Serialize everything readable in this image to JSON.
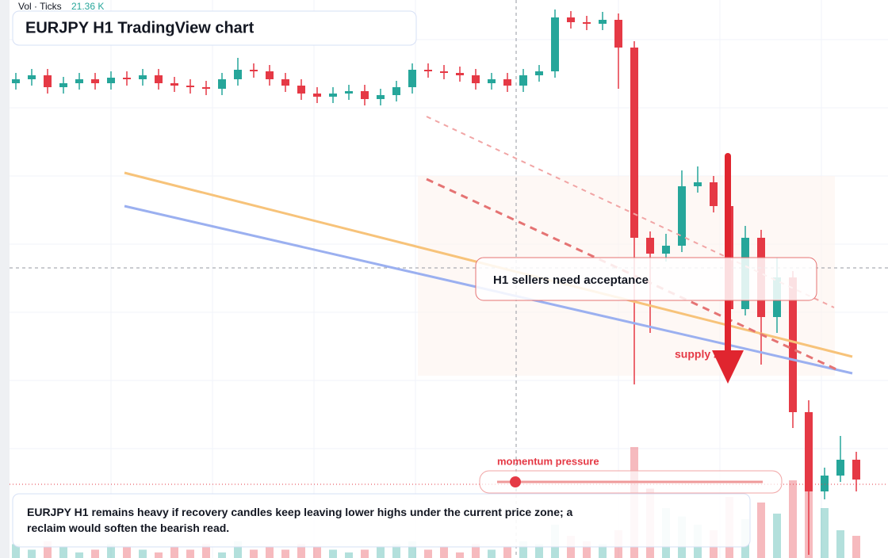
{
  "chart_data": {
    "type": "candlestick",
    "title": "EURJPY H1 TradingView chart",
    "volume_label": "Vol · Ticks",
    "volume_value": "21.36 K",
    "annotations": [
      "H1 sellers need acceptance",
      "supply zone",
      "momentum pressure",
      "EURJPY H1 remains heavy if recovery candles keep leaving lower highs under the current price zone; a reclaim would soften the bearish read."
    ],
    "up_color": "#26a69a",
    "down_color": "#e53945",
    "ylim": [
      157.0,
      164.0
    ],
    "volume_ylim": [
      0,
      200
    ],
    "open": [
      162.99,
      163.04,
      163.09,
      162.94,
      162.99,
      163.04,
      162.99,
      163.06,
      163.04,
      163.09,
      162.99,
      162.96,
      162.94,
      162.92,
      163.04,
      163.16,
      163.14,
      163.04,
      162.96,
      162.86,
      162.82,
      162.86,
      162.89,
      162.79,
      162.84,
      162.94,
      163.16,
      163.14,
      163.12,
      163.09,
      162.99,
      163.04,
      162.96,
      163.09,
      163.14,
      163.82,
      163.76,
      163.74,
      163.79,
      163.44,
      161.04,
      160.84,
      160.94,
      161.69,
      161.74,
      161.44,
      160.14,
      161.04,
      160.04,
      160.54,
      158.84,
      157.84,
      158.04,
      158.24
    ],
    "high": [
      163.12,
      163.17,
      163.17,
      163.07,
      163.12,
      163.12,
      163.14,
      163.14,
      163.17,
      163.17,
      163.07,
      163.04,
      163.02,
      163.12,
      163.31,
      163.24,
      163.22,
      163.12,
      163.04,
      162.94,
      162.94,
      162.97,
      162.97,
      162.92,
      163.02,
      163.24,
      163.24,
      163.22,
      163.2,
      163.17,
      163.12,
      163.12,
      163.17,
      163.22,
      163.92,
      163.9,
      163.84,
      163.89,
      163.87,
      163.52,
      161.12,
      161.09,
      161.89,
      161.94,
      161.82,
      161.64,
      161.19,
      161.14,
      160.79,
      160.62,
      158.99,
      158.14,
      158.54,
      158.34
    ],
    "low": [
      162.91,
      162.96,
      162.86,
      162.86,
      162.91,
      162.91,
      162.91,
      162.96,
      162.96,
      162.91,
      162.88,
      162.86,
      162.84,
      162.84,
      162.96,
      163.06,
      162.96,
      162.88,
      162.78,
      162.74,
      162.74,
      162.78,
      162.71,
      162.71,
      162.76,
      162.86,
      163.06,
      163.04,
      163.01,
      162.91,
      162.91,
      162.88,
      162.88,
      163.01,
      163.06,
      163.68,
      163.66,
      163.66,
      162.92,
      159.19,
      159.84,
      160.74,
      160.86,
      161.61,
      161.36,
      160.06,
      160.06,
      159.44,
      159.84,
      158.64,
      157.04,
      157.74,
      157.96,
      157.84
    ],
    "close": [
      163.04,
      163.09,
      162.94,
      162.99,
      163.04,
      162.99,
      163.06,
      163.04,
      163.09,
      162.99,
      162.96,
      162.94,
      162.92,
      163.04,
      163.16,
      163.14,
      163.04,
      162.96,
      162.86,
      162.82,
      162.86,
      162.89,
      162.79,
      162.84,
      162.94,
      163.16,
      163.14,
      163.12,
      163.09,
      162.99,
      163.04,
      162.96,
      163.09,
      163.14,
      163.82,
      163.76,
      163.74,
      163.79,
      163.44,
      161.04,
      160.84,
      160.94,
      161.69,
      161.74,
      161.44,
      160.14,
      161.04,
      160.04,
      160.54,
      158.84,
      157.84,
      158.04,
      158.24,
      157.99
    ],
    "volume": [
      5,
      3,
      6,
      4,
      2,
      3,
      5,
      4,
      3,
      2,
      4,
      3,
      5,
      2,
      6,
      3,
      4,
      3,
      5,
      4,
      3,
      2,
      3,
      4,
      5,
      6,
      3,
      4,
      2,
      5,
      3,
      4,
      6,
      5,
      12,
      8,
      6,
      5,
      10,
      40,
      25,
      18,
      15,
      12,
      10,
      22,
      14,
      20,
      16,
      28,
      35,
      18,
      10,
      8
    ]
  }
}
